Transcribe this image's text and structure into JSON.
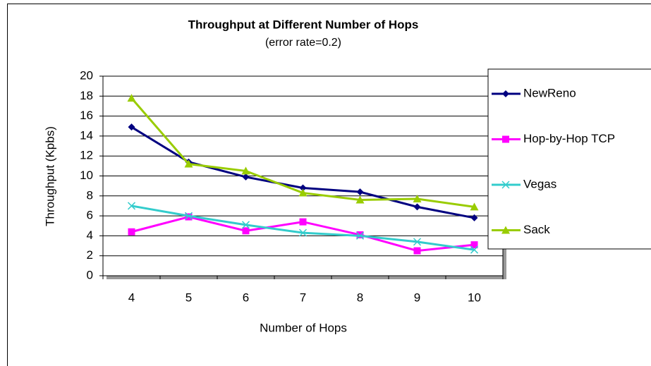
{
  "chart_data": {
    "type": "line",
    "title": "Throughput at Different Number of Hops",
    "subtitle": "(error rate=0.2)",
    "x_label": "Number of Hops",
    "y_label": "Throughput (Kpbs)",
    "categories": [
      "4",
      "5",
      "6",
      "7",
      "8",
      "9",
      "10"
    ],
    "series": [
      {
        "name": "NewReno",
        "color": "#000080",
        "marker": "diamond",
        "values": [
          14.9,
          11.4,
          9.9,
          8.8,
          8.4,
          6.9,
          5.8
        ]
      },
      {
        "name": "Hop-by-Hop TCP",
        "color": "#ff00ff",
        "marker": "square",
        "values": [
          4.4,
          5.9,
          4.5,
          5.4,
          4.1,
          2.5,
          3.1
        ]
      },
      {
        "name": "Vegas",
        "color": "#33cccc",
        "marker": "x",
        "values": [
          7.0,
          6.0,
          5.1,
          4.3,
          4.0,
          3.4,
          2.6
        ]
      },
      {
        "name": "Sack",
        "color": "#99cc00",
        "marker": "triangle",
        "values": [
          17.8,
          11.2,
          10.5,
          8.3,
          7.6,
          7.7,
          6.9
        ]
      }
    ],
    "ylim": [
      0,
      20
    ],
    "yticks": [
      0,
      2,
      4,
      6,
      8,
      10,
      12,
      14,
      16,
      18,
      20
    ],
    "grid": true,
    "legend": "right"
  }
}
